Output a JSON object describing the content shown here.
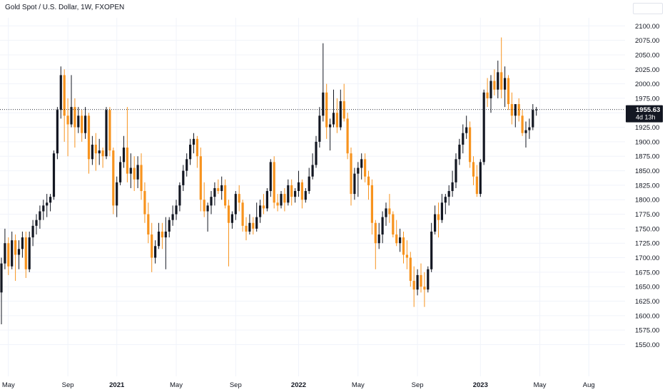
{
  "header": {
    "title": "Gold Spot / U.S. Dollar, 1W, FXOPEN"
  },
  "colors": {
    "up": "#131722",
    "down": "#f7931e",
    "grid": "#f0f3fa",
    "last_line": "#131722"
  },
  "chart_data": {
    "type": "candlestick",
    "title": "Gold Spot / U.S. Dollar, 1W, FXOPEN",
    "interval": "1W",
    "ylim": [
      1545,
      2115
    ],
    "grid": true,
    "x_tick_labels": [
      {
        "label": "May",
        "index": 2,
        "bold": false
      },
      {
        "label": "Sep",
        "index": 19,
        "bold": false
      },
      {
        "label": "2021",
        "index": 33,
        "bold": true
      },
      {
        "label": "May",
        "index": 50,
        "bold": false
      },
      {
        "label": "Sep",
        "index": 67,
        "bold": false
      },
      {
        "label": "2022",
        "index": 85,
        "bold": true
      },
      {
        "label": "May",
        "index": 102,
        "bold": false
      },
      {
        "label": "Sep",
        "index": 119,
        "bold": false
      },
      {
        "label": "2023",
        "index": 137,
        "bold": true
      },
      {
        "label": "May",
        "index": 154,
        "bold": false
      },
      {
        "label": "Aug",
        "index": 168,
        "bold": false
      }
    ],
    "y_ticks": [
      1550,
      1575,
      1600,
      1625,
      1650,
      1675,
      1700,
      1725,
      1750,
      1775,
      1800,
      1825,
      1850,
      1875,
      1900,
      1925,
      1950,
      1975,
      2000,
      2025,
      2050,
      2075,
      2100
    ],
    "last_price": {
      "value": "1955.63",
      "numeric": 1955.63,
      "countdown": "4d 13h"
    },
    "candles": [
      [
        1640,
        1700,
        1585,
        1690
      ],
      [
        1690,
        1750,
        1680,
        1725
      ],
      [
        1725,
        1735,
        1670,
        1685
      ],
      [
        1685,
        1745,
        1680,
        1730
      ],
      [
        1730,
        1740,
        1660,
        1705
      ],
      [
        1705,
        1730,
        1680,
        1715
      ],
      [
        1715,
        1745,
        1700,
        1735
      ],
      [
        1735,
        1745,
        1665,
        1680
      ],
      [
        1680,
        1745,
        1675,
        1735
      ],
      [
        1735,
        1765,
        1720,
        1755
      ],
      [
        1755,
        1775,
        1740,
        1765
      ],
      [
        1765,
        1790,
        1750,
        1780
      ],
      [
        1780,
        1800,
        1765,
        1790
      ],
      [
        1790,
        1810,
        1770,
        1795
      ],
      [
        1795,
        1810,
        1780,
        1805
      ],
      [
        1805,
        1885,
        1800,
        1880
      ],
      [
        1880,
        1960,
        1870,
        1955
      ],
      [
        1955,
        2030,
        1940,
        2015
      ],
      [
        2015,
        2025,
        1900,
        1945
      ],
      [
        1945,
        1975,
        1875,
        1930
      ],
      [
        1930,
        2015,
        1925,
        1960
      ],
      [
        1960,
        1975,
        1890,
        1925
      ],
      [
        1925,
        1960,
        1915,
        1945
      ],
      [
        1945,
        1955,
        1900,
        1915
      ],
      [
        1915,
        1960,
        1905,
        1945
      ],
      [
        1945,
        1950,
        1845,
        1870
      ],
      [
        1870,
        1910,
        1860,
        1895
      ],
      [
        1895,
        1915,
        1850,
        1880
      ],
      [
        1880,
        1905,
        1860,
        1885
      ],
      [
        1885,
        1890,
        1855,
        1875
      ],
      [
        1875,
        1960,
        1870,
        1955
      ],
      [
        1955,
        1960,
        1875,
        1885
      ],
      [
        1885,
        1890,
        1775,
        1790
      ],
      [
        1790,
        1840,
        1770,
        1830
      ],
      [
        1830,
        1875,
        1825,
        1865
      ],
      [
        1865,
        1910,
        1855,
        1890
      ],
      [
        1890,
        1960,
        1830,
        1845
      ],
      [
        1845,
        1880,
        1820,
        1855
      ],
      [
        1855,
        1875,
        1815,
        1835
      ],
      [
        1835,
        1875,
        1820,
        1860
      ],
      [
        1860,
        1880,
        1800,
        1815
      ],
      [
        1815,
        1830,
        1760,
        1775
      ],
      [
        1775,
        1795,
        1725,
        1740
      ],
      [
        1740,
        1760,
        1675,
        1700
      ],
      [
        1700,
        1730,
        1690,
        1720
      ],
      [
        1720,
        1760,
        1715,
        1745
      ],
      [
        1745,
        1760,
        1715,
        1735
      ],
      [
        1735,
        1770,
        1680,
        1745
      ],
      [
        1745,
        1770,
        1735,
        1765
      ],
      [
        1765,
        1790,
        1755,
        1775
      ],
      [
        1775,
        1800,
        1765,
        1790
      ],
      [
        1790,
        1830,
        1780,
        1825
      ],
      [
        1825,
        1860,
        1815,
        1850
      ],
      [
        1850,
        1880,
        1840,
        1870
      ],
      [
        1870,
        1905,
        1860,
        1895
      ],
      [
        1895,
        1915,
        1880,
        1905
      ],
      [
        1905,
        1910,
        1855,
        1875
      ],
      [
        1875,
        1890,
        1780,
        1800
      ],
      [
        1800,
        1830,
        1770,
        1780
      ],
      [
        1780,
        1795,
        1745,
        1790
      ],
      [
        1790,
        1815,
        1775,
        1805
      ],
      [
        1805,
        1830,
        1790,
        1820
      ],
      [
        1820,
        1835,
        1810,
        1815
      ],
      [
        1815,
        1840,
        1800,
        1825
      ],
      [
        1825,
        1835,
        1785,
        1790
      ],
      [
        1790,
        1800,
        1685,
        1760
      ],
      [
        1760,
        1780,
        1750,
        1775
      ],
      [
        1775,
        1815,
        1765,
        1810
      ],
      [
        1810,
        1825,
        1780,
        1795
      ],
      [
        1795,
        1800,
        1745,
        1755
      ],
      [
        1755,
        1770,
        1730,
        1745
      ],
      [
        1745,
        1775,
        1740,
        1760
      ],
      [
        1760,
        1770,
        1740,
        1750
      ],
      [
        1750,
        1795,
        1745,
        1770
      ],
      [
        1770,
        1800,
        1760,
        1790
      ],
      [
        1790,
        1810,
        1775,
        1785
      ],
      [
        1785,
        1820,
        1780,
        1815
      ],
      [
        1815,
        1870,
        1805,
        1865
      ],
      [
        1865,
        1875,
        1785,
        1795
      ],
      [
        1795,
        1810,
        1780,
        1790
      ],
      [
        1790,
        1815,
        1785,
        1810
      ],
      [
        1810,
        1820,
        1780,
        1795
      ],
      [
        1795,
        1835,
        1790,
        1825
      ],
      [
        1825,
        1835,
        1790,
        1805
      ],
      [
        1805,
        1820,
        1795,
        1815
      ],
      [
        1815,
        1850,
        1805,
        1830
      ],
      [
        1830,
        1835,
        1785,
        1800
      ],
      [
        1800,
        1820,
        1795,
        1815
      ],
      [
        1815,
        1855,
        1810,
        1840
      ],
      [
        1840,
        1880,
        1835,
        1860
      ],
      [
        1860,
        1910,
        1855,
        1900
      ],
      [
        1900,
        1960,
        1890,
        1945
      ],
      [
        1945,
        2070,
        1935,
        1985
      ],
      [
        1985,
        2000,
        1905,
        1925
      ],
      [
        1925,
        1940,
        1885,
        1930
      ],
      [
        1930,
        1990,
        1925,
        1950
      ],
      [
        1950,
        1975,
        1915,
        1925
      ],
      [
        1925,
        1990,
        1920,
        1970
      ],
      [
        1970,
        2000,
        1935,
        1940
      ],
      [
        1940,
        1950,
        1870,
        1880
      ],
      [
        1880,
        1890,
        1790,
        1810
      ],
      [
        1810,
        1855,
        1800,
        1845
      ],
      [
        1845,
        1865,
        1805,
        1855
      ],
      [
        1855,
        1880,
        1835,
        1870
      ],
      [
        1870,
        1880,
        1830,
        1840
      ],
      [
        1840,
        1850,
        1800,
        1825
      ],
      [
        1825,
        1835,
        1740,
        1760
      ],
      [
        1760,
        1765,
        1680,
        1725
      ],
      [
        1725,
        1760,
        1715,
        1740
      ],
      [
        1740,
        1780,
        1725,
        1770
      ],
      [
        1770,
        1795,
        1755,
        1785
      ],
      [
        1785,
        1810,
        1760,
        1775
      ],
      [
        1775,
        1780,
        1735,
        1740
      ],
      [
        1740,
        1765,
        1720,
        1725
      ],
      [
        1725,
        1750,
        1710,
        1735
      ],
      [
        1735,
        1745,
        1690,
        1705
      ],
      [
        1705,
        1730,
        1680,
        1700
      ],
      [
        1700,
        1710,
        1650,
        1660
      ],
      [
        1660,
        1685,
        1615,
        1645
      ],
      [
        1645,
        1680,
        1635,
        1670
      ],
      [
        1670,
        1690,
        1640,
        1650
      ],
      [
        1650,
        1675,
        1615,
        1645
      ],
      [
        1645,
        1685,
        1640,
        1680
      ],
      [
        1680,
        1760,
        1675,
        1745
      ],
      [
        1745,
        1790,
        1740,
        1775
      ],
      [
        1775,
        1795,
        1735,
        1765
      ],
      [
        1765,
        1810,
        1760,
        1795
      ],
      [
        1795,
        1810,
        1775,
        1805
      ],
      [
        1805,
        1825,
        1790,
        1815
      ],
      [
        1815,
        1850,
        1805,
        1830
      ],
      [
        1830,
        1880,
        1820,
        1870
      ],
      [
        1870,
        1905,
        1860,
        1895
      ],
      [
        1895,
        1930,
        1880,
        1915
      ],
      [
        1915,
        1945,
        1905,
        1925
      ],
      [
        1925,
        1935,
        1855,
        1865
      ],
      [
        1865,
        1875,
        1825,
        1840
      ],
      [
        1840,
        1860,
        1805,
        1810
      ],
      [
        1810,
        1870,
        1805,
        1865
      ],
      [
        1865,
        1990,
        1860,
        1985
      ],
      [
        1985,
        2010,
        1960,
        1975
      ],
      [
        1975,
        2015,
        1950,
        2005
      ],
      [
        2005,
        2025,
        1980,
        1990
      ],
      [
        1990,
        2040,
        1975,
        2020
      ],
      [
        2020,
        2080,
        1975,
        1990
      ],
      [
        1990,
        2030,
        1960,
        2010
      ],
      [
        2010,
        2015,
        1955,
        1965
      ],
      [
        1965,
        1985,
        1930,
        1945
      ],
      [
        1945,
        1960,
        1925,
        1965
      ],
      [
        1965,
        1975,
        1935,
        1945
      ],
      [
        1945,
        1955,
        1910,
        1915
      ],
      [
        1915,
        1935,
        1890,
        1920
      ],
      [
        1920,
        1940,
        1905,
        1925
      ],
      [
        1925,
        1965,
        1920,
        1955
      ],
      [
        1955,
        1960,
        1945,
        1955.63
      ]
    ]
  }
}
